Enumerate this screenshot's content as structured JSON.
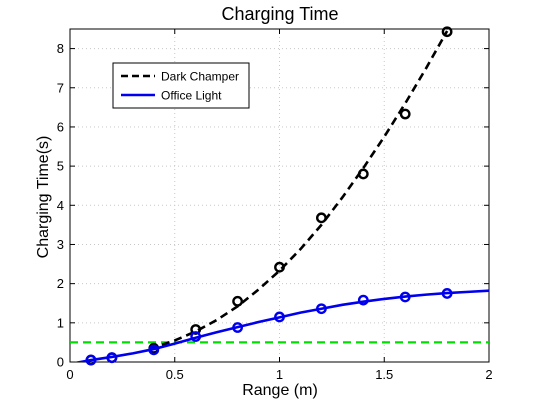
{
  "chart_data": {
    "type": "line",
    "title": "Charging Time",
    "xlabel": "Range (m)",
    "ylabel": "Charging Time(s)",
    "xlim": [
      0,
      2
    ],
    "ylim": [
      0,
      8.5
    ],
    "xticks": [
      0,
      0.5,
      1,
      1.5,
      2
    ],
    "xtick_labels": [
      "0",
      "0.5",
      "1",
      "1.5",
      "2"
    ],
    "yticks": [
      0,
      1,
      2,
      3,
      4,
      5,
      6,
      7,
      8
    ],
    "ytick_labels": [
      "0",
      "1",
      "2",
      "3",
      "4",
      "5",
      "6",
      "7",
      "8"
    ],
    "grid": true,
    "legend_position": "top-left",
    "reference_line": {
      "y": 0.5,
      "color": "#00dd00",
      "style": "dashed"
    },
    "series": [
      {
        "name": "Dark Champer",
        "color": "#000000",
        "style": "dashed",
        "marker": "circle",
        "points_x": [
          0.1,
          0.2,
          0.4,
          0.6,
          0.8,
          1.0,
          1.2,
          1.4,
          1.6,
          1.8
        ],
        "points_y": [
          0.05,
          0.11,
          0.35,
          0.83,
          1.55,
          2.42,
          3.68,
          4.8,
          6.33,
          8.43
        ],
        "curve_x": [
          0.38,
          0.5,
          0.6,
          0.7,
          0.8,
          0.9,
          1.0,
          1.1,
          1.2,
          1.3,
          1.4,
          1.5,
          1.6,
          1.7,
          1.8
        ],
        "curve_y": [
          0.33,
          0.55,
          0.78,
          1.07,
          1.42,
          1.85,
          2.33,
          2.88,
          3.5,
          4.2,
          4.95,
          5.75,
          6.6,
          7.5,
          8.45
        ]
      },
      {
        "name": "Office Light",
        "color": "#0000ee",
        "style": "solid",
        "marker": "circle",
        "points_x": [
          0.1,
          0.2,
          0.4,
          0.6,
          0.8,
          1.0,
          1.2,
          1.4,
          1.6,
          1.8
        ],
        "points_y": [
          0.05,
          0.11,
          0.31,
          0.65,
          0.88,
          1.15,
          1.36,
          1.58,
          1.66,
          1.75
        ],
        "curve_x": [
          0.0,
          0.05,
          0.1,
          0.2,
          0.3,
          0.4,
          0.5,
          0.6,
          0.7,
          0.8,
          0.9,
          1.0,
          1.1,
          1.2,
          1.3,
          1.4,
          1.5,
          1.6,
          1.7,
          1.8,
          1.9,
          2.0
        ],
        "curve_y": [
          -0.05,
          0.0,
          0.05,
          0.13,
          0.22,
          0.33,
          0.47,
          0.62,
          0.76,
          0.89,
          1.02,
          1.14,
          1.26,
          1.36,
          1.46,
          1.54,
          1.61,
          1.67,
          1.72,
          1.76,
          1.79,
          1.82
        ]
      }
    ]
  }
}
